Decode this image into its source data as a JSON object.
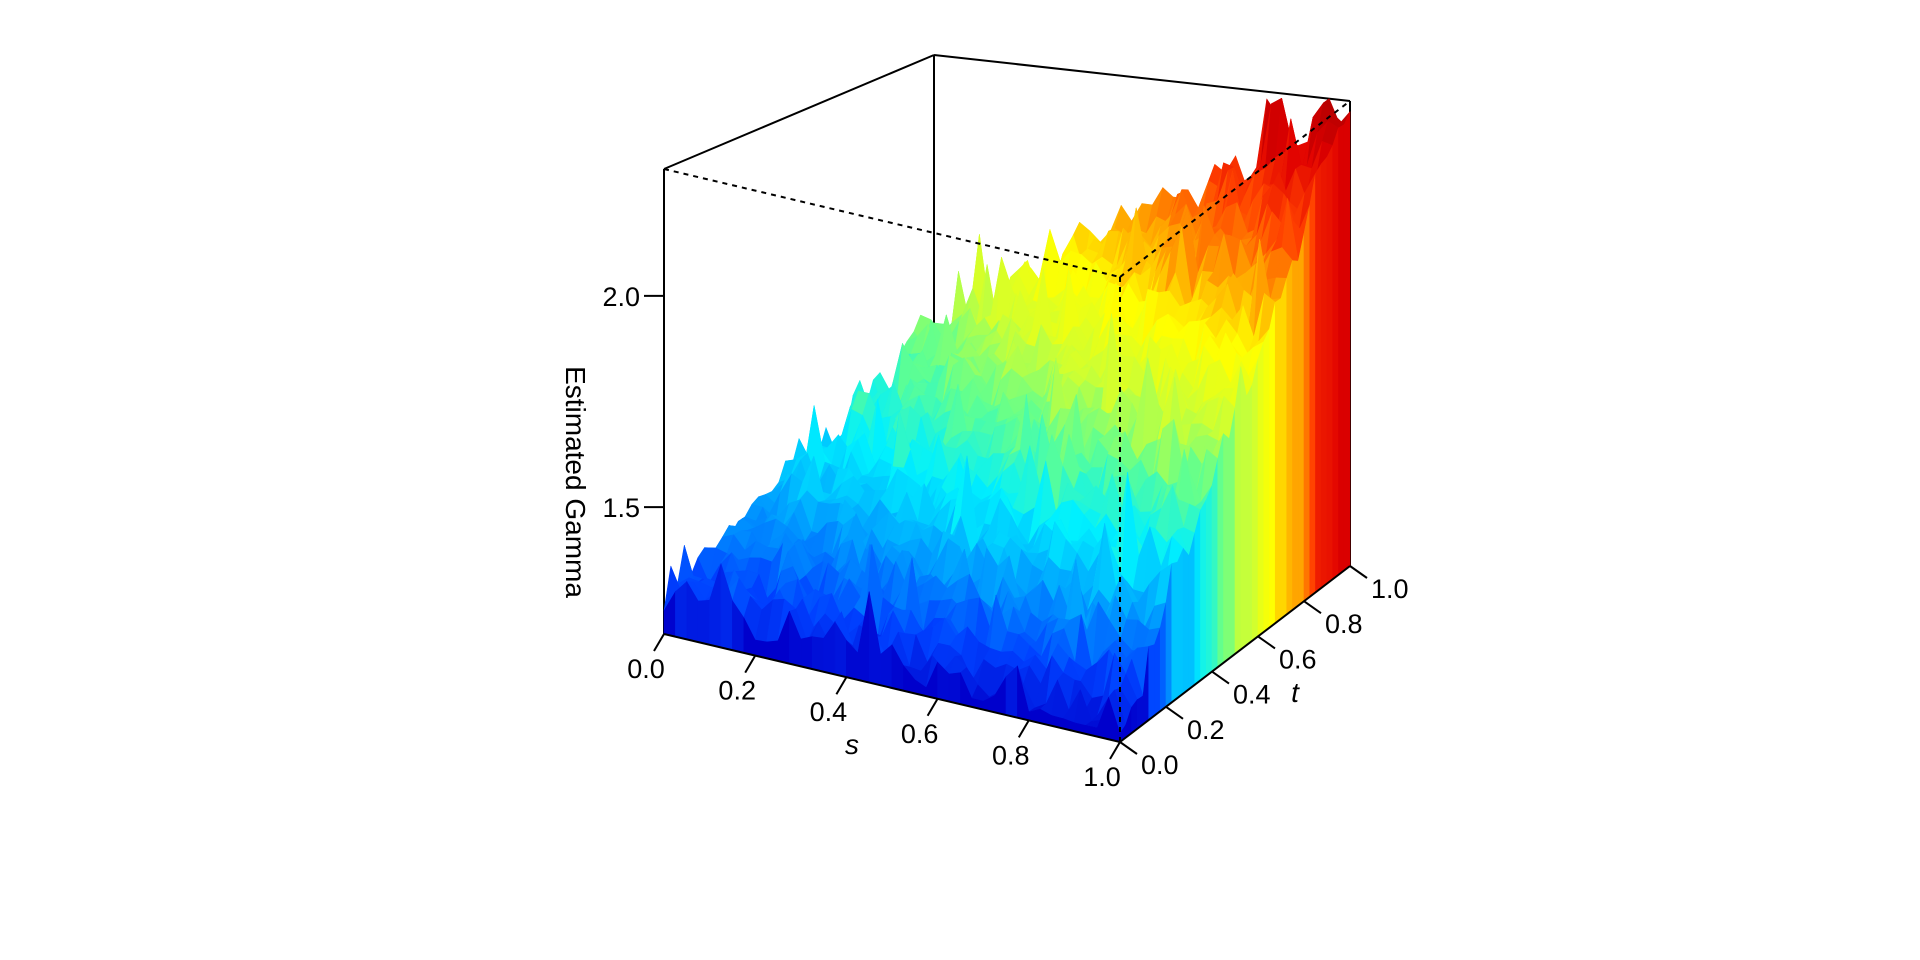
{
  "chart_data": {
    "type": "surface",
    "title": "",
    "axes": {
      "s": {
        "label": "s",
        "range": [
          0,
          1
        ],
        "ticks": [
          0.0,
          0.2,
          0.4,
          0.6,
          0.8,
          1.0
        ],
        "tick_labels": [
          "0.0",
          "0.2",
          "0.4",
          "0.6",
          "0.8",
          "1.0"
        ]
      },
      "t": {
        "label": "t",
        "range": [
          0,
          1
        ],
        "ticks": [
          0.0,
          0.2,
          0.4,
          0.6,
          0.8,
          1.0
        ],
        "tick_labels": [
          "0.0",
          "0.2",
          "0.4",
          "0.6",
          "0.8",
          "1.0"
        ]
      },
      "z": {
        "label": "Estimated Gamma",
        "range": [
          1.2,
          2.3
        ],
        "ticks": [
          1.5,
          2.0
        ],
        "tick_labels": [
          "1.5",
          "2.0"
        ]
      }
    },
    "colormap": [
      "#0000cc",
      "#0040ff",
      "#00a0ff",
      "#00f0ff",
      "#60ff90",
      "#d0ff30",
      "#ffff00",
      "#ffa000",
      "#ff4000",
      "#e00000",
      "#b00000"
    ],
    "grid_resolution": 41,
    "surface_trend": {
      "corner_values": {
        "s0_t0": 1.3,
        "s1_t0": 1.22,
        "s0_t1": 1.65,
        "s1_t1": 2.3
      },
      "description_note": "Estimated Gamma increases with t, and more steeply near s = 1; surface is noisy with spikes."
    }
  }
}
